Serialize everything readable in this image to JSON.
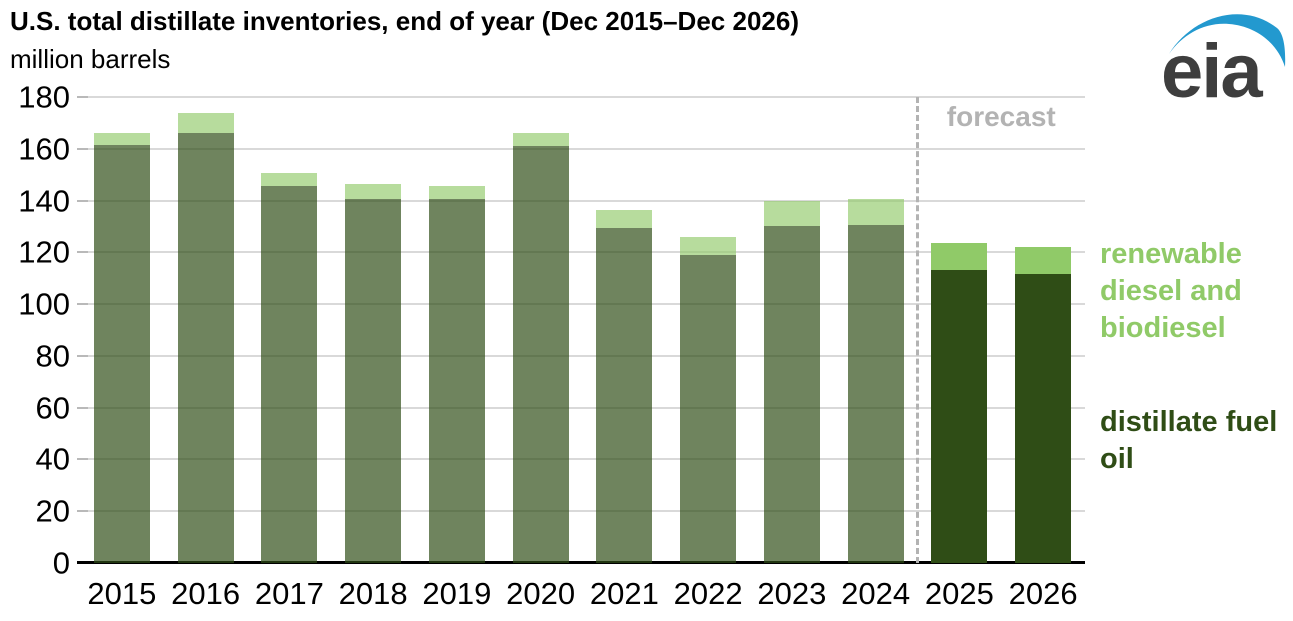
{
  "header": {
    "title": "U.S. total distillate inventories, end of year (Dec 2015–Dec 2026)",
    "subtitle": "million barrels"
  },
  "logo": {
    "text": "eia",
    "text_color": "#3e3e3e",
    "swoosh_color": "#2399cf"
  },
  "legend": {
    "renewable_label": "renewable diesel and biodiesel",
    "renewable_color": "#90ca68",
    "distillate_label": "distillate fuel oil",
    "distillate_color": "#2f4d16"
  },
  "forecast": {
    "label": "forecast",
    "color": "#b3b3b3"
  },
  "chart_data": {
    "type": "bar",
    "stacked": true,
    "title": "U.S. total distillate inventories, end of year (Dec 2015–Dec 2026)",
    "ylabel": "million barrels",
    "categories": [
      "2015",
      "2016",
      "2017",
      "2018",
      "2019",
      "2020",
      "2021",
      "2022",
      "2023",
      "2024",
      "2025",
      "2026"
    ],
    "series": [
      {
        "name": "distillate fuel oil",
        "values": [
          161.5,
          166,
          145.5,
          140.5,
          140.5,
          161,
          129.5,
          119,
          130,
          130.5,
          113,
          111.5
        ],
        "color_history": "rgba(47,77,22,0.69)",
        "color_forecast": "#2f4d16"
      },
      {
        "name": "renewable diesel and biodiesel",
        "values": [
          4.5,
          8,
          5,
          6,
          5,
          5,
          7,
          7,
          10,
          10,
          10.5,
          10.5
        ],
        "color_history": "rgba(144,202,104,0.65)",
        "color_forecast": "#90ca68"
      }
    ],
    "forecast_start_index": 10,
    "ylim": [
      0,
      180
    ],
    "yticks": [
      0,
      20,
      40,
      60,
      80,
      100,
      120,
      140,
      160,
      180
    ],
    "grid": "horizontal",
    "gridline_color": "#d9d9d9",
    "legend_position": "right"
  }
}
